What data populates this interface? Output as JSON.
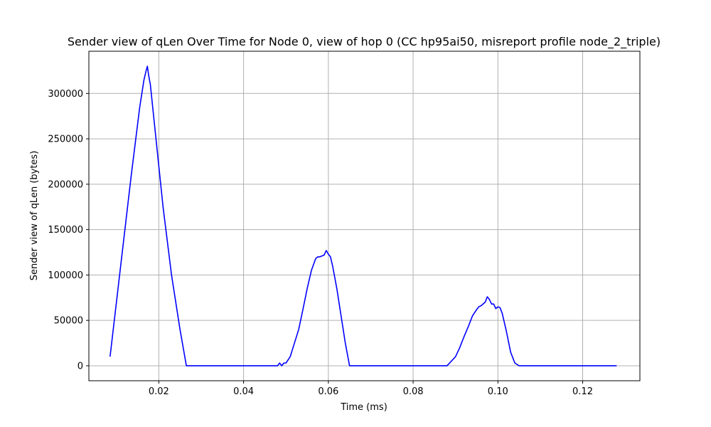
{
  "chart_data": {
    "type": "line",
    "title": "Sender view of qLen Over Time for Node 0, view of hop 0 (CC hp95ai50, misreport profile node_2_triple)",
    "xlabel": "Time (ms)",
    "ylabel": "Sender view of qLen (bytes)",
    "xlim": [
      0.0035,
      0.1335
    ],
    "ylim": [
      -16500,
      346500
    ],
    "xticks": [
      0.02,
      0.04,
      0.06,
      0.08,
      0.1,
      0.12
    ],
    "xtick_labels": [
      "0.02",
      "0.04",
      "0.06",
      "0.08",
      "0.10",
      "0.12"
    ],
    "yticks": [
      0,
      50000,
      100000,
      150000,
      200000,
      250000,
      300000
    ],
    "ytick_labels": [
      "0",
      "50000",
      "100000",
      "150000",
      "200000",
      "250000",
      "300000"
    ],
    "grid": true,
    "series": [
      {
        "color": "#0000ff",
        "x": [
          0.0085,
          0.011,
          0.0135,
          0.0155,
          0.0165,
          0.017,
          0.0173,
          0.0176,
          0.018,
          0.019,
          0.021,
          0.023,
          0.025,
          0.0265,
          0.03,
          0.035,
          0.04,
          0.045,
          0.048,
          0.0485,
          0.049,
          0.0495,
          0.05,
          0.051,
          0.052,
          0.053,
          0.054,
          0.055,
          0.056,
          0.057,
          0.0575,
          0.058,
          0.059,
          0.0595,
          0.06,
          0.0605,
          0.061,
          0.062,
          0.063,
          0.064,
          0.065,
          0.0655,
          0.07,
          0.075,
          0.08,
          0.085,
          0.088,
          0.089,
          0.09,
          0.091,
          0.092,
          0.093,
          0.094,
          0.095,
          0.0955,
          0.096,
          0.097,
          0.0975,
          0.098,
          0.0985,
          0.099,
          0.0995,
          0.1,
          0.1005,
          0.101,
          0.102,
          0.103,
          0.104,
          0.105,
          0.11,
          0.115,
          0.12,
          0.125,
          0.128
        ],
        "y": [
          10000,
          110000,
          210000,
          285000,
          315000,
          325000,
          330000,
          320000,
          310000,
          265000,
          175000,
          100000,
          40000,
          0,
          0,
          0,
          0,
          0,
          0,
          3000,
          0,
          3000,
          3000,
          10000,
          25000,
          40000,
          62000,
          85000,
          105000,
          118000,
          120000,
          120000,
          122000,
          127000,
          123000,
          120000,
          110000,
          85000,
          55000,
          25000,
          0,
          0,
          0,
          0,
          0,
          0,
          0,
          5000,
          10000,
          20000,
          32000,
          43000,
          55000,
          62000,
          65000,
          66000,
          70000,
          76000,
          73000,
          68000,
          68000,
          63000,
          65000,
          64000,
          58000,
          38000,
          15000,
          3000,
          0,
          0,
          0,
          0,
          0,
          0
        ]
      }
    ]
  }
}
